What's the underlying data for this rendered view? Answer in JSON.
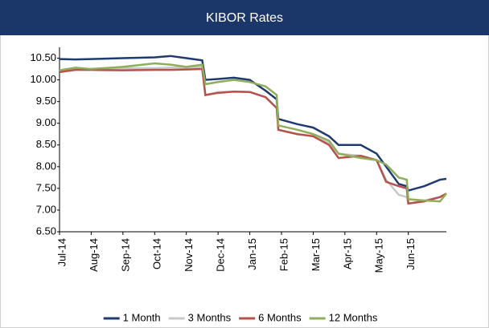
{
  "chart_data": {
    "type": "line",
    "title": "KIBOR Rates",
    "x": [
      0,
      0.5,
      1,
      2,
      3,
      3.5,
      4,
      4.5,
      4.6,
      5,
      5.5,
      6,
      6.5,
      6.85,
      6.9,
      7.5,
      8,
      8.5,
      8.8,
      9.5,
      10,
      10.3,
      10.7,
      10.95,
      11,
      11.5,
      12,
      12.2
    ],
    "xlim": [
      0,
      12.2
    ],
    "xticks": [
      {
        "value": 0,
        "label": "Jul-14"
      },
      {
        "value": 1,
        "label": "Aug-14"
      },
      {
        "value": 2,
        "label": "Sep-14"
      },
      {
        "value": 3,
        "label": "Oct-14"
      },
      {
        "value": 4,
        "label": "Nov-14"
      },
      {
        "value": 5,
        "label": "Dec-14"
      },
      {
        "value": 6,
        "label": "Jan-15"
      },
      {
        "value": 7,
        "label": "Feb-15"
      },
      {
        "value": 8,
        "label": "Mar-15"
      },
      {
        "value": 9,
        "label": "Apr-15"
      },
      {
        "value": 10,
        "label": "May-15"
      },
      {
        "value": 11,
        "label": "Jun-15"
      }
    ],
    "ylim": [
      6.5,
      10.75
    ],
    "yticks": [
      {
        "value": 6.5,
        "label": "6.50"
      },
      {
        "value": 7,
        "label": "7.00"
      },
      {
        "value": 7.5,
        "label": "7.50"
      },
      {
        "value": 8,
        "label": "8.00"
      },
      {
        "value": 8.5,
        "label": "8.50"
      },
      {
        "value": 9,
        "label": "9.00"
      },
      {
        "value": 9.5,
        "label": "9.50"
      },
      {
        "value": 10,
        "label": "10.00"
      },
      {
        "value": 10.5,
        "label": "10.50"
      }
    ],
    "grid": false,
    "legend": "bottom",
    "series": [
      {
        "name": "1 Month",
        "color": "#1f3a6e",
        "values": [
          10.48,
          10.47,
          10.48,
          10.5,
          10.52,
          10.55,
          10.5,
          10.45,
          10.0,
          10.02,
          10.05,
          10.0,
          9.75,
          9.55,
          9.1,
          8.98,
          8.9,
          8.7,
          8.5,
          8.5,
          8.3,
          8.0,
          7.6,
          7.55,
          7.45,
          7.55,
          7.7,
          7.72
        ]
      },
      {
        "name": "3 Months",
        "color": "#c8c8c8",
        "values": [
          10.2,
          10.25,
          10.25,
          10.27,
          10.27,
          10.28,
          10.28,
          10.3,
          9.65,
          9.72,
          9.73,
          9.72,
          9.6,
          9.35,
          8.85,
          8.75,
          8.7,
          8.55,
          8.3,
          8.25,
          8.15,
          7.7,
          7.35,
          7.3,
          7.15,
          7.22,
          7.3,
          7.38
        ]
      },
      {
        "name": "6 Months",
        "color": "#b5524b",
        "values": [
          10.18,
          10.23,
          10.23,
          10.22,
          10.23,
          10.23,
          10.24,
          10.25,
          9.65,
          9.7,
          9.73,
          9.72,
          9.6,
          9.35,
          8.85,
          8.75,
          8.7,
          8.5,
          8.2,
          8.25,
          8.15,
          7.65,
          7.55,
          7.5,
          7.15,
          7.2,
          7.3,
          7.38
        ]
      },
      {
        "name": "12 Months",
        "color": "#8fad5a",
        "values": [
          10.22,
          10.28,
          10.25,
          10.3,
          10.38,
          10.35,
          10.3,
          10.35,
          9.9,
          9.95,
          10.0,
          9.95,
          9.85,
          9.65,
          8.95,
          8.85,
          8.75,
          8.6,
          8.3,
          8.2,
          8.15,
          8.05,
          7.75,
          7.7,
          7.25,
          7.22,
          7.2,
          7.38
        ]
      }
    ]
  }
}
